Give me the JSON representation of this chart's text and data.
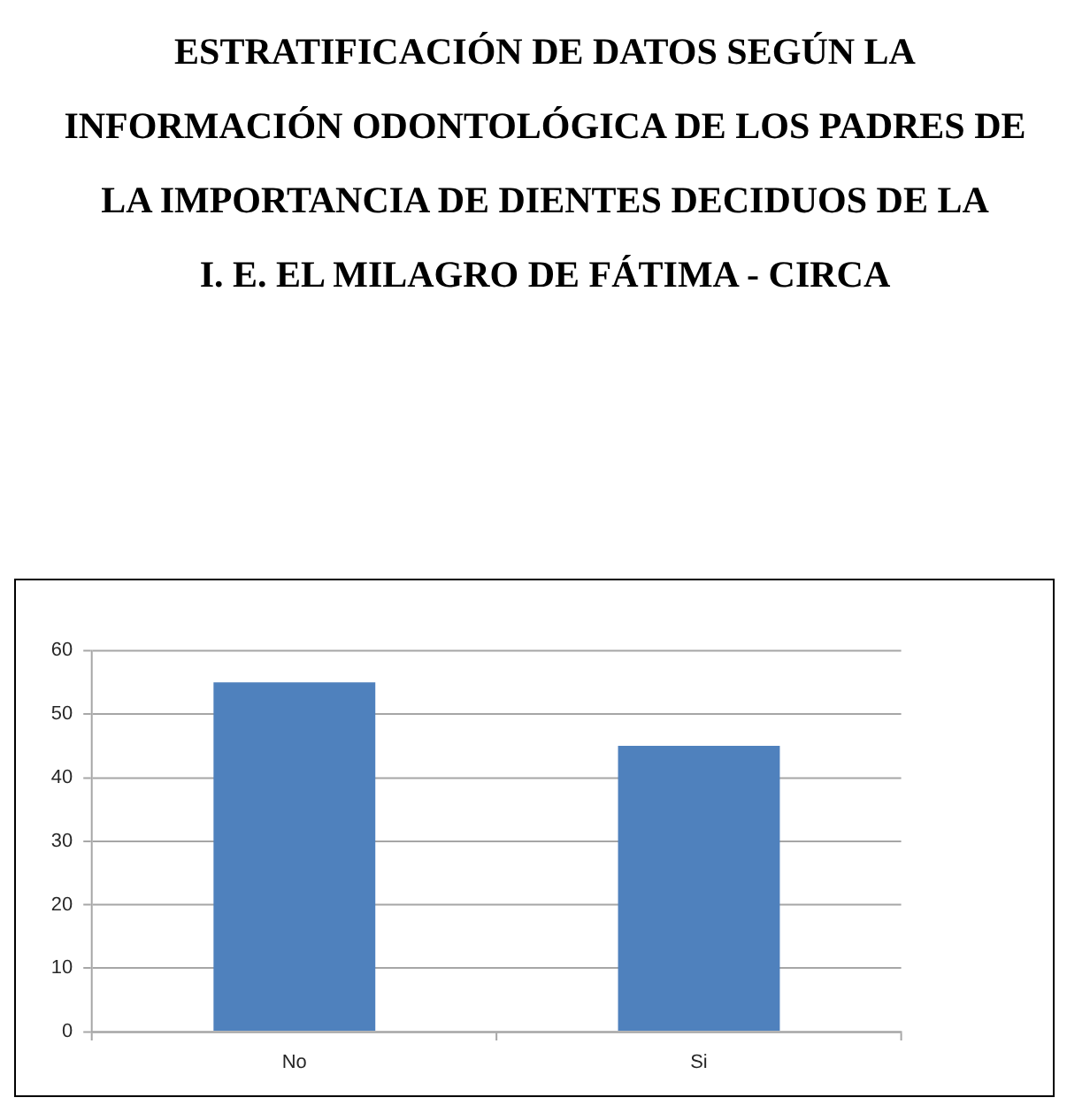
{
  "chart_data": {
    "type": "bar",
    "title": "ESTRATIFICACIÓN DE DATOS SEGÚN LA\nINFORMACIÓN ODONTOLÓGICA DE LOS PADRES DE\nLA IMPORTANCIA DE DIENTES DECIDUOS DE LA\nI. E. EL MILAGRO DE FÁTIMA - CIRCA",
    "categories": [
      "No",
      "Si"
    ],
    "values": [
      55,
      45
    ],
    "color": "#4f81bd",
    "ylim": [
      0,
      60
    ],
    "yticks": [
      0,
      10,
      20,
      30,
      40,
      50,
      60
    ],
    "grid": "y"
  }
}
